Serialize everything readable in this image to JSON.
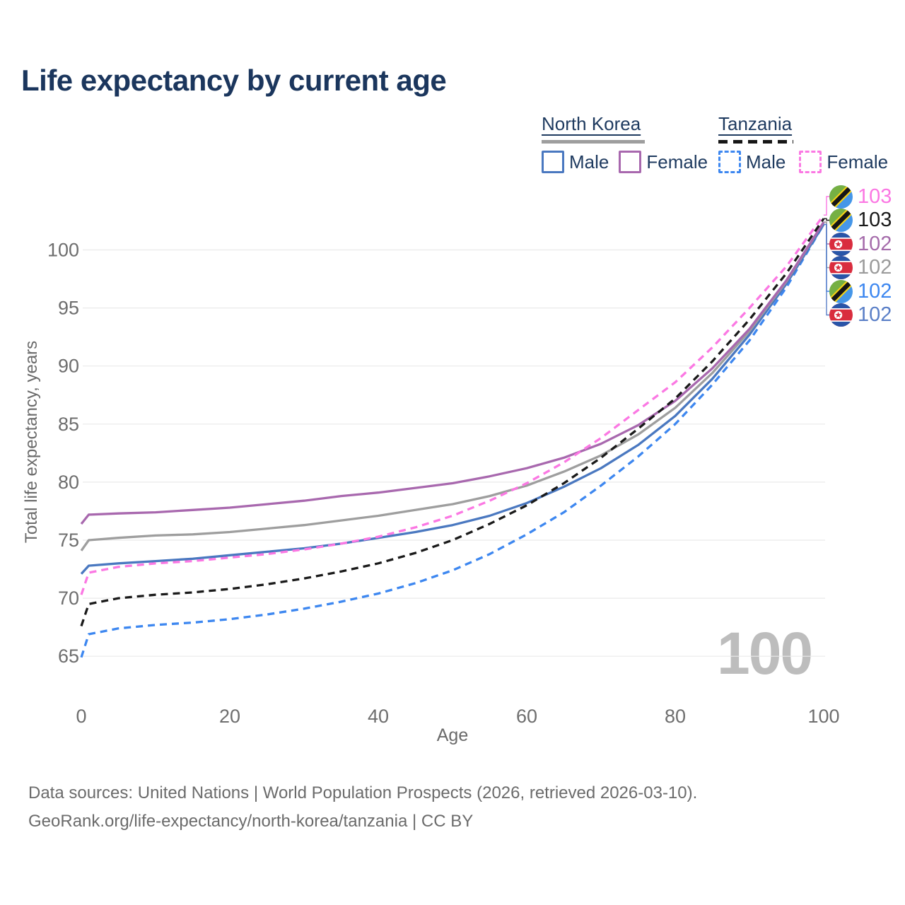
{
  "page": {
    "title": "Life expectancy by current age"
  },
  "legend": {
    "north_korea": {
      "title": "North Korea",
      "male": "Male",
      "female": "Female"
    },
    "tanzania": {
      "title": "Tanzania",
      "male": "Male",
      "female": "Female"
    }
  },
  "chart_data": {
    "type": "line",
    "title": "Life expectancy by current age",
    "xlabel": "Age",
    "ylabel": "Total life expectancy, years",
    "x_ticks": [
      0,
      20,
      40,
      60,
      80,
      100
    ],
    "y_ticks": [
      65,
      70,
      75,
      80,
      85,
      90,
      95,
      100
    ],
    "xlim": [
      0,
      100
    ],
    "ylim": [
      63,
      104
    ],
    "grid": "horizontal",
    "legend_position": "top-right",
    "watermark": "100",
    "ages": [
      0,
      1,
      5,
      10,
      15,
      20,
      25,
      30,
      35,
      40,
      45,
      50,
      55,
      60,
      65,
      70,
      75,
      80,
      85,
      90,
      95,
      100
    ],
    "series": [
      {
        "name": "North Korea Male",
        "country": "North Korea",
        "sex": "male",
        "color": "#4a78c0",
        "dash": false,
        "values": [
          72.1,
          72.8,
          73.0,
          73.2,
          73.4,
          73.7,
          74.0,
          74.3,
          74.7,
          75.2,
          75.7,
          76.3,
          77.1,
          78.2,
          79.6,
          81.2,
          83.2,
          85.7,
          88.9,
          92.7,
          97.1,
          102.2
        ]
      },
      {
        "name": "North Korea Female",
        "country": "North Korea",
        "sex": "female",
        "color": "#a868ae",
        "dash": false,
        "values": [
          76.4,
          77.2,
          77.3,
          77.4,
          77.6,
          77.8,
          78.1,
          78.4,
          78.8,
          79.1,
          79.5,
          79.9,
          80.5,
          81.2,
          82.1,
          83.3,
          84.9,
          87.0,
          89.8,
          93.2,
          97.4,
          102.4
        ]
      },
      {
        "name": "North Korea",
        "country": "North Korea",
        "sex": "both",
        "color": "#9e9e9e",
        "dash": false,
        "values": [
          74.1,
          75.0,
          75.2,
          75.4,
          75.5,
          75.7,
          76.0,
          76.3,
          76.7,
          77.1,
          77.6,
          78.1,
          78.8,
          79.7,
          80.9,
          82.3,
          84.1,
          86.4,
          89.4,
          93.0,
          97.3,
          102.4
        ]
      },
      {
        "name": "Tanzania Male",
        "country": "Tanzania",
        "sex": "male",
        "color": "#3d87f0",
        "dash": true,
        "values": [
          64.9,
          66.9,
          67.4,
          67.7,
          67.9,
          68.2,
          68.6,
          69.1,
          69.7,
          70.4,
          71.3,
          72.4,
          73.8,
          75.5,
          77.4,
          79.7,
          82.2,
          85.0,
          88.4,
          92.2,
          96.8,
          102.2
        ]
      },
      {
        "name": "Tanzania Female",
        "country": "Tanzania",
        "sex": "female",
        "color": "#fb78e3",
        "dash": true,
        "values": [
          70.3,
          72.2,
          72.7,
          73.0,
          73.2,
          73.5,
          73.8,
          74.2,
          74.7,
          75.3,
          76.1,
          77.1,
          78.4,
          79.9,
          81.7,
          83.8,
          86.2,
          88.6,
          91.6,
          95.0,
          98.6,
          103.0
        ]
      },
      {
        "name": "Tanzania",
        "country": "Tanzania",
        "sex": "both",
        "color": "#1a1a1a",
        "dash": true,
        "values": [
          67.6,
          69.5,
          70.0,
          70.3,
          70.5,
          70.8,
          71.2,
          71.7,
          72.3,
          73.0,
          73.9,
          75.0,
          76.4,
          78.0,
          79.9,
          82.1,
          84.6,
          87.2,
          90.4,
          94.0,
          98.0,
          102.7
        ]
      }
    ],
    "draw_order": [
      3,
      0,
      2,
      1,
      5,
      4
    ],
    "end_labels": [
      {
        "value": "103",
        "color": "#fb78e3",
        "flag": "tanzania",
        "series": "Tanzania Female",
        "series_index": 4
      },
      {
        "value": "103",
        "color": "#1a1a1a",
        "flag": "tanzania",
        "series": "Tanzania",
        "series_index": 5
      },
      {
        "value": "102",
        "color": "#a56cab",
        "flag": "north-korea",
        "series": "North Korea Female",
        "series_index": 1
      },
      {
        "value": "102",
        "color": "#9b9b9b",
        "flag": "north-korea",
        "series": "North Korea",
        "series_index": 2
      },
      {
        "value": "102",
        "color": "#3d87f0",
        "flag": "tanzania",
        "series": "Tanzania Male",
        "series_index": 3
      },
      {
        "value": "102",
        "color": "#5a7fc7",
        "flag": "north-korea",
        "series": "North Korea Male",
        "series_index": 0
      }
    ],
    "colors": {
      "title": "#1b365d",
      "axis_text": "#6e6e6e",
      "gridline": "#eaeaea",
      "watermark": "#bdbdbd"
    }
  },
  "footer": {
    "line1": "Data sources: United Nations | World Population Prospects (2026, retrieved 2026-03-10).",
    "line2": "GeoRank.org/life-expectancy/north-korea/tanzania | CC BY"
  }
}
